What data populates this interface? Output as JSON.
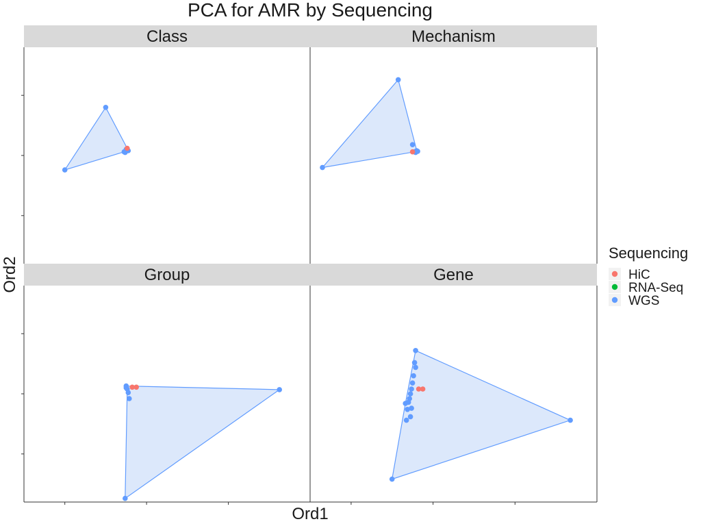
{
  "chart_data": {
    "type": "scatter",
    "title": "PCA for AMR by Sequencing",
    "xlabel": "Ord1",
    "ylabel": "Ord2",
    "grid": false,
    "legend": {
      "title": "Sequencing",
      "placement": "right",
      "entries": [
        {
          "name": "HiC",
          "color": "#F8766D"
        },
        {
          "name": "RNA-Seq",
          "color": "#00BA38"
        },
        {
          "name": "WGS",
          "color": "#619CFF"
        }
      ]
    },
    "hull_fill": "#dce8fb",
    "panels": [
      {
        "name": "Class",
        "xlim": [
          -1,
          13
        ],
        "ylim": [
          -6.5,
          11.5
        ],
        "series": [
          {
            "name": "WGS",
            "points": [
              [
                3,
                6.5
              ],
              [
                1,
                1.3
              ],
              [
                4,
                3
              ],
              [
                3.9,
                2.8
              ],
              [
                4.1,
                2.9
              ],
              [
                4.05,
                2.95
              ],
              [
                3.95,
                2.75
              ]
            ],
            "hull": [
              [
                3,
                6.5
              ],
              [
                1,
                1.3
              ],
              [
                3.9,
                2.8
              ],
              [
                4.1,
                2.9
              ],
              [
                4.05,
                3.1
              ]
            ]
          },
          {
            "name": "HiC",
            "points": [
              [
                4.05,
                3.1
              ]
            ]
          }
        ]
      },
      {
        "name": "Mechanism",
        "xlim": [
          -1,
          13
        ],
        "ylim": [
          -6.5,
          11.5
        ],
        "series": [
          {
            "name": "WGS",
            "points": [
              [
                3.3,
                8.8
              ],
              [
                -0.4,
                1.5
              ],
              [
                4.1,
                2.8
              ],
              [
                4.2,
                2.9
              ],
              [
                4,
                3.4
              ],
              [
                4.15,
                2.75
              ],
              [
                4.25,
                2.85
              ]
            ],
            "hull": [
              [
                3.3,
                8.8
              ],
              [
                -0.4,
                1.5
              ],
              [
                4.1,
                2.8
              ],
              [
                4.25,
                2.85
              ],
              [
                4.2,
                2.95
              ]
            ]
          },
          {
            "name": "HiC",
            "points": [
              [
                4,
                2.8
              ]
            ]
          }
        ]
      },
      {
        "name": "Group",
        "xlim": [
          -1,
          13
        ],
        "ylim": [
          -6.5,
          11.5
        ],
        "series": [
          {
            "name": "WGS",
            "points": [
              [
                4,
                3.15
              ],
              [
                4,
                3.0
              ],
              [
                4.05,
                2.9
              ],
              [
                4.1,
                2.6
              ],
              [
                4.15,
                2.1
              ],
              [
                11.5,
                2.85
              ],
              [
                3.95,
                -6.2
              ]
            ],
            "hull": [
              [
                4,
                3.15
              ],
              [
                11.5,
                2.85
              ],
              [
                3.95,
                -6.2
              ],
              [
                4.05,
                2.7
              ]
            ]
          },
          {
            "name": "HiC",
            "points": [
              [
                4.3,
                3.05
              ],
              [
                4.5,
                3.05
              ]
            ]
          }
        ]
      },
      {
        "name": "Gene",
        "xlim": [
          -1,
          13
        ],
        "ylim": [
          -6.5,
          11.5
        ],
        "series": [
          {
            "name": "WGS",
            "points": [
              [
                4.15,
                6.1
              ],
              [
                4.1,
                5.1
              ],
              [
                4.15,
                4.7
              ],
              [
                4.05,
                4.0
              ],
              [
                4,
                3.4
              ],
              [
                3.95,
                2.9
              ],
              [
                3.9,
                2.5
              ],
              [
                3.85,
                2.1
              ],
              [
                3.8,
                1.8
              ],
              [
                3.75,
                1.2
              ],
              [
                3.7,
                0.3
              ],
              [
                3.65,
                1.7
              ],
              [
                3.9,
                0.6
              ],
              [
                3.95,
                1.3
              ],
              [
                11.7,
                0.3
              ],
              [
                3,
                -4.6
              ]
            ],
            "hull": [
              [
                4.15,
                6.1
              ],
              [
                11.7,
                0.3
              ],
              [
                3,
                -4.6
              ],
              [
                3.65,
                1.7
              ]
            ]
          },
          {
            "name": "HiC",
            "points": [
              [
                4.3,
                2.9
              ],
              [
                4.5,
                2.9
              ]
            ]
          }
        ]
      }
    ]
  }
}
